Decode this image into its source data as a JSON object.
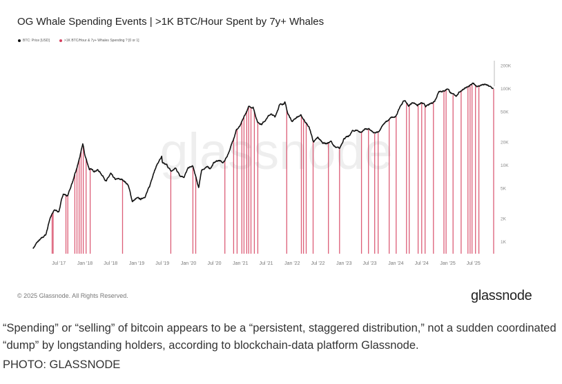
{
  "chart_data": {
    "type": "line",
    "title": "OG Whale Spending Events | >1K BTC/Hour Spent by 7y+ Whales",
    "legend": {
      "placement": "top-left",
      "entries": [
        "BTC: Price [USD]",
        ">1K BTC/Hour & 7y+ Whales Spending ? [0 or 1]"
      ]
    },
    "y_scale": "log",
    "ylim": [
      700,
      230000
    ],
    "y_ticks": [
      {
        "v": 1000,
        "label": "1K"
      },
      {
        "v": 2000,
        "label": "2K"
      },
      {
        "v": 5000,
        "label": "5K"
      },
      {
        "v": 10000,
        "label": "10K"
      },
      {
        "v": 20000,
        "label": "20K"
      },
      {
        "v": 50000,
        "label": "50K"
      },
      {
        "v": 100000,
        "label": "100K"
      },
      {
        "v": 200000,
        "label": "200K"
      }
    ],
    "x_range": [
      "2017-01-01",
      "2025-11-25"
    ],
    "x_ticks": [
      {
        "d": "2017-07-01",
        "label": "Jul '17"
      },
      {
        "d": "2018-01-01",
        "label": "Jan '18"
      },
      {
        "d": "2018-07-01",
        "label": "Jul '18"
      },
      {
        "d": "2019-01-01",
        "label": "Jan '19"
      },
      {
        "d": "2019-07-01",
        "label": "Jul '19"
      },
      {
        "d": "2020-01-01",
        "label": "Jan '20"
      },
      {
        "d": "2020-07-01",
        "label": "Jul '20"
      },
      {
        "d": "2021-01-01",
        "label": "Jan '21"
      },
      {
        "d": "2021-07-01",
        "label": "Jul '21"
      },
      {
        "d": "2022-01-01",
        "label": "Jan '22"
      },
      {
        "d": "2022-07-01",
        "label": "Jul '22"
      },
      {
        "d": "2023-01-01",
        "label": "Jan '23"
      },
      {
        "d": "2023-07-01",
        "label": "Jul '23"
      },
      {
        "d": "2024-01-01",
        "label": "Jan '24"
      },
      {
        "d": "2024-07-01",
        "label": "Jul '24"
      },
      {
        "d": "2025-01-01",
        "label": "Jan '25"
      },
      {
        "d": "2025-07-01",
        "label": "Jul '25"
      }
    ],
    "grid": false,
    "colors": {
      "price": "#111111",
      "spending": "#d6405f"
    },
    "series": [
      {
        "name": "BTC: Price [USD]",
        "points": [
          [
            "2017-01-01",
            830
          ],
          [
            "2017-02-01",
            1000
          ],
          [
            "2017-03-01",
            1100
          ],
          [
            "2017-04-01",
            1250
          ],
          [
            "2017-05-01",
            2100
          ],
          [
            "2017-06-01",
            2600
          ],
          [
            "2017-07-01",
            2500
          ],
          [
            "2017-08-01",
            4300
          ],
          [
            "2017-09-01",
            4000
          ],
          [
            "2017-10-01",
            5800
          ],
          [
            "2017-11-01",
            8500
          ],
          [
            "2017-12-01",
            14000
          ],
          [
            "2017-12-17",
            19000
          ],
          [
            "2018-01-01",
            13500
          ],
          [
            "2018-02-01",
            9000
          ],
          [
            "2018-03-01",
            8500
          ],
          [
            "2018-04-01",
            8800
          ],
          [
            "2018-05-01",
            7600
          ],
          [
            "2018-06-01",
            6300
          ],
          [
            "2018-07-01",
            7700
          ],
          [
            "2018-08-01",
            6500
          ],
          [
            "2018-09-01",
            6600
          ],
          [
            "2018-10-01",
            6400
          ],
          [
            "2018-11-01",
            5600
          ],
          [
            "2018-12-01",
            3400
          ],
          [
            "2019-01-01",
            3700
          ],
          [
            "2019-02-01",
            3600
          ],
          [
            "2019-03-01",
            4000
          ],
          [
            "2019-04-01",
            5200
          ],
          [
            "2019-05-01",
            8300
          ],
          [
            "2019-06-01",
            11000
          ],
          [
            "2019-06-26",
            13000
          ],
          [
            "2019-07-01",
            10500
          ],
          [
            "2019-08-01",
            10000
          ],
          [
            "2019-09-01",
            8300
          ],
          [
            "2019-10-01",
            9200
          ],
          [
            "2019-11-01",
            7500
          ],
          [
            "2019-12-01",
            7200
          ],
          [
            "2020-01-01",
            9300
          ],
          [
            "2020-02-01",
            9700
          ],
          [
            "2020-03-13",
            5000
          ],
          [
            "2020-04-01",
            8600
          ],
          [
            "2020-05-01",
            9500
          ],
          [
            "2020-06-01",
            9200
          ],
          [
            "2020-07-01",
            11000
          ],
          [
            "2020-08-01",
            11700
          ],
          [
            "2020-09-01",
            10700
          ],
          [
            "2020-10-01",
            13500
          ],
          [
            "2020-11-01",
            19000
          ],
          [
            "2020-12-01",
            29000
          ],
          [
            "2021-01-01",
            33000
          ],
          [
            "2021-02-01",
            45000
          ],
          [
            "2021-03-01",
            58000
          ],
          [
            "2021-04-01",
            58000
          ],
          [
            "2021-05-01",
            37000
          ],
          [
            "2021-06-01",
            35000
          ],
          [
            "2021-07-01",
            41000
          ],
          [
            "2021-08-01",
            47000
          ],
          [
            "2021-09-01",
            43000
          ],
          [
            "2021-10-01",
            61000
          ],
          [
            "2021-11-10",
            67000
          ],
          [
            "2021-12-01",
            47000
          ],
          [
            "2022-01-01",
            38000
          ],
          [
            "2022-02-01",
            43000
          ],
          [
            "2022-03-01",
            45000
          ],
          [
            "2022-04-01",
            38000
          ],
          [
            "2022-05-01",
            31000
          ],
          [
            "2022-06-01",
            20000
          ],
          [
            "2022-07-01",
            23000
          ],
          [
            "2022-08-01",
            20000
          ],
          [
            "2022-09-01",
            19500
          ],
          [
            "2022-10-01",
            20500
          ],
          [
            "2022-11-01",
            17000
          ],
          [
            "2022-12-01",
            16500
          ],
          [
            "2023-01-01",
            23000
          ],
          [
            "2023-02-01",
            23500
          ],
          [
            "2023-03-01",
            28000
          ],
          [
            "2023-04-01",
            29000
          ],
          [
            "2023-05-01",
            27000
          ],
          [
            "2023-06-01",
            30500
          ],
          [
            "2023-07-01",
            29200
          ],
          [
            "2023-08-01",
            26000
          ],
          [
            "2023-09-01",
            27000
          ],
          [
            "2023-10-01",
            34500
          ],
          [
            "2023-11-01",
            37700
          ],
          [
            "2023-12-01",
            42000
          ],
          [
            "2024-01-01",
            42500
          ],
          [
            "2024-02-01",
            61000
          ],
          [
            "2024-03-01",
            71000
          ],
          [
            "2024-04-01",
            60000
          ],
          [
            "2024-05-01",
            67000
          ],
          [
            "2024-06-01",
            62000
          ],
          [
            "2024-07-01",
            65000
          ],
          [
            "2024-08-01",
            59000
          ],
          [
            "2024-09-01",
            63000
          ],
          [
            "2024-10-01",
            70000
          ],
          [
            "2024-11-01",
            96000
          ],
          [
            "2024-12-01",
            94000
          ],
          [
            "2025-01-01",
            102000
          ],
          [
            "2025-02-01",
            84000
          ],
          [
            "2025-03-01",
            82000
          ],
          [
            "2025-04-01",
            94000
          ],
          [
            "2025-05-01",
            104000
          ],
          [
            "2025-06-01",
            107000
          ],
          [
            "2025-07-01",
            117000
          ],
          [
            "2025-08-01",
            108000
          ],
          [
            "2025-09-01",
            114000
          ],
          [
            "2025-10-01",
            112000
          ],
          [
            "2025-11-20",
            100000
          ]
        ]
      },
      {
        "name": ">1K BTC/Hour & 7y+ Whales Spending ? [0 or 1]",
        "event_dates": [
          "2017-05-15",
          "2017-05-22",
          "2017-08-20",
          "2017-09-02",
          "2017-10-22",
          "2017-11-06",
          "2017-11-21",
          "2017-12-05",
          "2017-12-20",
          "2018-01-09",
          "2018-02-07",
          "2018-09-23",
          "2019-08-29",
          "2020-02-01",
          "2020-02-21",
          "2020-09-13",
          "2020-11-14",
          "2020-12-08",
          "2021-01-11",
          "2021-01-26",
          "2021-02-14",
          "2021-02-28",
          "2021-03-16",
          "2021-04-09",
          "2021-05-03",
          "2021-11-23",
          "2022-03-06",
          "2022-03-21",
          "2022-04-09",
          "2022-05-28",
          "2022-09-13",
          "2022-11-30",
          "2023-05-04",
          "2023-06-22",
          "2023-08-05",
          "2023-08-29",
          "2023-11-15",
          "2024-01-03",
          "2024-03-16",
          "2024-04-04",
          "2024-06-06",
          "2024-07-01",
          "2024-07-25",
          "2024-09-22",
          "2024-12-05",
          "2024-12-20",
          "2025-02-07",
          "2025-04-05",
          "2025-05-23",
          "2025-06-07",
          "2025-06-21",
          "2025-07-15",
          "2025-08-08",
          "2025-11-20"
        ]
      }
    ]
  },
  "watermark": "glassnode",
  "footer": {
    "copyright": "© 2025 Glassnode. All Rights Reserved.",
    "logo": "glassnode"
  },
  "caption": "“Spending” or “selling” of bitcoin appears to be a “persistent, staggered distribution,” not a sudden coordinated “dump” by longstanding holders, according to blockchain-data platform Glassnode.",
  "credit": "PHOTO: GLASSNODE"
}
